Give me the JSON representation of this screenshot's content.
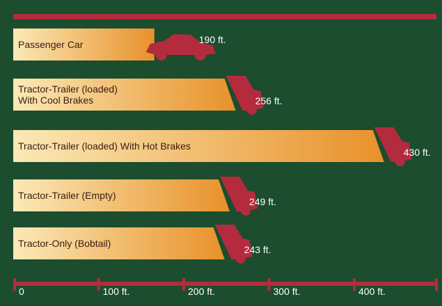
{
  "chart_data": {
    "type": "bar",
    "orientation": "horizontal",
    "categories": [
      [
        "Passenger Car"
      ],
      [
        "Tractor-Trailer (loaded)",
        "With Cool Brakes"
      ],
      [
        "Tractor-Trailer (loaded) With Hot Brakes"
      ],
      [
        "Tractor-Trailer (Empty)"
      ],
      [
        "Tractor-Only (Bobtail)"
      ]
    ],
    "values": [
      190,
      256,
      430,
      249,
      243
    ],
    "value_labels": [
      "190 ft.",
      "256 ft.",
      "430 ft.",
      "249 ft.",
      "243 ft."
    ],
    "vehicle_icons": [
      "car-icon",
      "truck-icon",
      "truck-icon",
      "truck-icon",
      "truck-icon"
    ],
    "x_ticks": [
      0,
      100,
      200,
      300,
      400
    ],
    "x_tick_labels": [
      "0",
      "100 ft.",
      "200 ft.",
      "300 ft.",
      "400 ft."
    ],
    "xlim": [
      0,
      500
    ],
    "title": "",
    "xlabel": "",
    "ylabel": "",
    "grid": false,
    "colors": {
      "background": "#1b4d2e",
      "bar_light": "#fbe9b6",
      "bar_dark": "#e8912a",
      "vehicle": "#b42b3e",
      "axis": "#b42b3e",
      "label_text": "#3a1a12",
      "value_text": "#ffffff"
    }
  }
}
